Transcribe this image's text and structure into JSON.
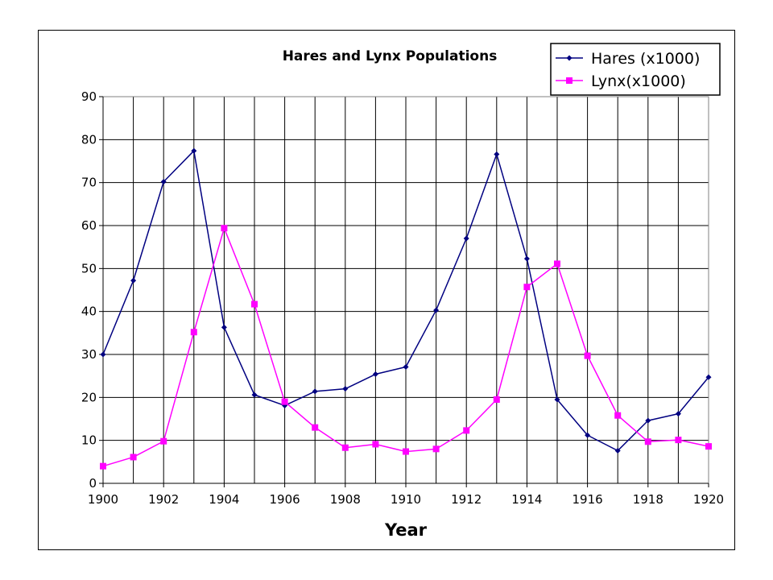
{
  "chart_data": {
    "type": "line",
    "title": "Hares and Lynx Populations",
    "xlabel": "Year",
    "ylabel": "",
    "xlim": [
      1900,
      1920
    ],
    "ylim": [
      0,
      90
    ],
    "x_tick_labels": [
      "1900",
      "1902",
      "1904",
      "1906",
      "1908",
      "1910",
      "1912",
      "1914",
      "1916",
      "1918",
      "1920"
    ],
    "y_tick_labels": [
      "0",
      "10",
      "20",
      "30",
      "40",
      "50",
      "60",
      "70",
      "80",
      "90"
    ],
    "grid": "vertical lines every year, horizontal lines every 10",
    "legend_position": "top-right",
    "x": [
      1900,
      1901,
      1902,
      1903,
      1904,
      1905,
      1906,
      1907,
      1908,
      1909,
      1910,
      1911,
      1912,
      1913,
      1914,
      1915,
      1916,
      1917,
      1918,
      1919,
      1920
    ],
    "series": [
      {
        "name": "Hares (x1000)",
        "color": "#000080",
        "marker": "diamond",
        "values": [
          30,
          47.2,
          70.2,
          77.4,
          36.3,
          20.6,
          18.1,
          21.4,
          22,
          25.4,
          27.1,
          40.3,
          57,
          76.6,
          52.3,
          19.5,
          11.2,
          7.6,
          14.6,
          16.2,
          24.7
        ]
      },
      {
        "name": "Lynx(x1000)",
        "color": "#ff00ff",
        "marker": "square",
        "values": [
          4,
          6.1,
          9.8,
          35.2,
          59.4,
          41.7,
          19,
          13,
          8.3,
          9.1,
          7.4,
          8,
          12.3,
          19.5,
          45.7,
          51.1,
          29.7,
          15.8,
          9.7,
          10.1,
          8.6
        ]
      }
    ]
  }
}
